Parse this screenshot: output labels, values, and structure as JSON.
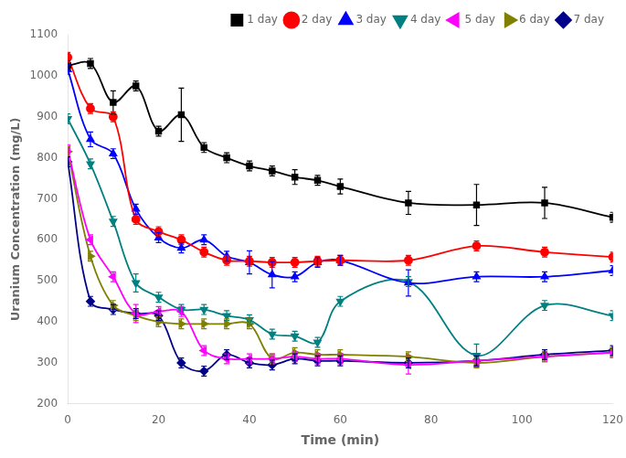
{
  "chart_data": {
    "type": "line",
    "xlabel": "Time (min)",
    "ylabel": "Uranium Concentration (mg/L)",
    "x": [
      0,
      5,
      10,
      15,
      20,
      25,
      30,
      35,
      40,
      45,
      50,
      55,
      60,
      75,
      90,
      105,
      120
    ],
    "series": [
      {
        "name": "1 day",
        "color": "#000000",
        "marker": "square",
        "values": [
          1025,
          1030,
          935,
          975,
          865,
          905,
          825,
          800,
          780,
          768,
          753,
          745,
          730,
          690,
          685,
          690,
          655
        ],
        "errors": [
          12,
          12,
          28,
          12,
          12,
          65,
          12,
          12,
          12,
          12,
          18,
          12,
          18,
          28,
          50,
          38,
          12
        ]
      },
      {
        "name": "2 day",
        "color": "#ff0000",
        "marker": "circle",
        "values": [
          1045,
          920,
          900,
          650,
          620,
          600,
          570,
          550,
          548,
          545,
          545,
          548,
          550,
          550,
          585,
          570,
          558
        ],
        "errors": [
          12,
          12,
          12,
          12,
          12,
          12,
          12,
          12,
          12,
          12,
          12,
          12,
          12,
          12,
          12,
          12,
          12
        ]
      },
      {
        "name": "3 day",
        "color": "#0000ff",
        "marker": "triangle-up",
        "values": [
          1015,
          845,
          810,
          675,
          605,
          580,
          600,
          560,
          545,
          515,
          510,
          545,
          550,
          495,
          510,
          510,
          525
        ],
        "errors": [
          12,
          18,
          12,
          12,
          12,
          12,
          12,
          12,
          28,
          32,
          12,
          12,
          12,
          32,
          12,
          12,
          12
        ]
      },
      {
        "name": "4 day",
        "color": "#008080",
        "marker": "triangle-down",
        "values": [
          895,
          785,
          645,
          495,
          460,
          430,
          430,
          415,
          405,
          370,
          365,
          350,
          450,
          498,
          318,
          440,
          415
        ],
        "errors": [
          12,
          12,
          12,
          22,
          12,
          12,
          12,
          12,
          12,
          12,
          12,
          12,
          12,
          12,
          28,
          12,
          12
        ]
      },
      {
        "name": "5 day",
        "color": "#ff00ff",
        "marker": "triangle-left",
        "values": [
          820,
          600,
          510,
          420,
          425,
          425,
          330,
          310,
          310,
          310,
          315,
          310,
          310,
          295,
          305,
          315,
          325
        ],
        "errors": [
          12,
          12,
          12,
          22,
          12,
          12,
          12,
          12,
          12,
          12,
          12,
          12,
          12,
          22,
          12,
          12,
          12
        ]
      },
      {
        "name": "6 day",
        "color": "#808000",
        "marker": "triangle-right",
        "values": [
          815,
          560,
          440,
          415,
          400,
          395,
          395,
          395,
          395,
          310,
          325,
          320,
          320,
          315,
          300,
          315,
          325
        ],
        "errors": [
          12,
          12,
          12,
          12,
          12,
          12,
          12,
          12,
          12,
          12,
          12,
          12,
          12,
          12,
          12,
          12,
          12
        ]
      },
      {
        "name": "7 day",
        "color": "#00008B",
        "marker": "diamond",
        "values": [
          790,
          450,
          430,
          420,
          415,
          300,
          280,
          320,
          300,
          295,
          310,
          305,
          305,
          300,
          305,
          320,
          330
        ],
        "errors": [
          12,
          12,
          12,
          12,
          12,
          12,
          12,
          12,
          12,
          12,
          12,
          12,
          12,
          12,
          12,
          12,
          12
        ]
      }
    ],
    "xlim": [
      0,
      120
    ],
    "ylim": [
      200,
      1100
    ],
    "xticks": [
      0,
      20,
      40,
      60,
      80,
      100,
      120
    ],
    "yticks": [
      200,
      300,
      400,
      500,
      600,
      700,
      800,
      900,
      1000,
      1100
    ],
    "grid": false,
    "legend": "upper right"
  }
}
